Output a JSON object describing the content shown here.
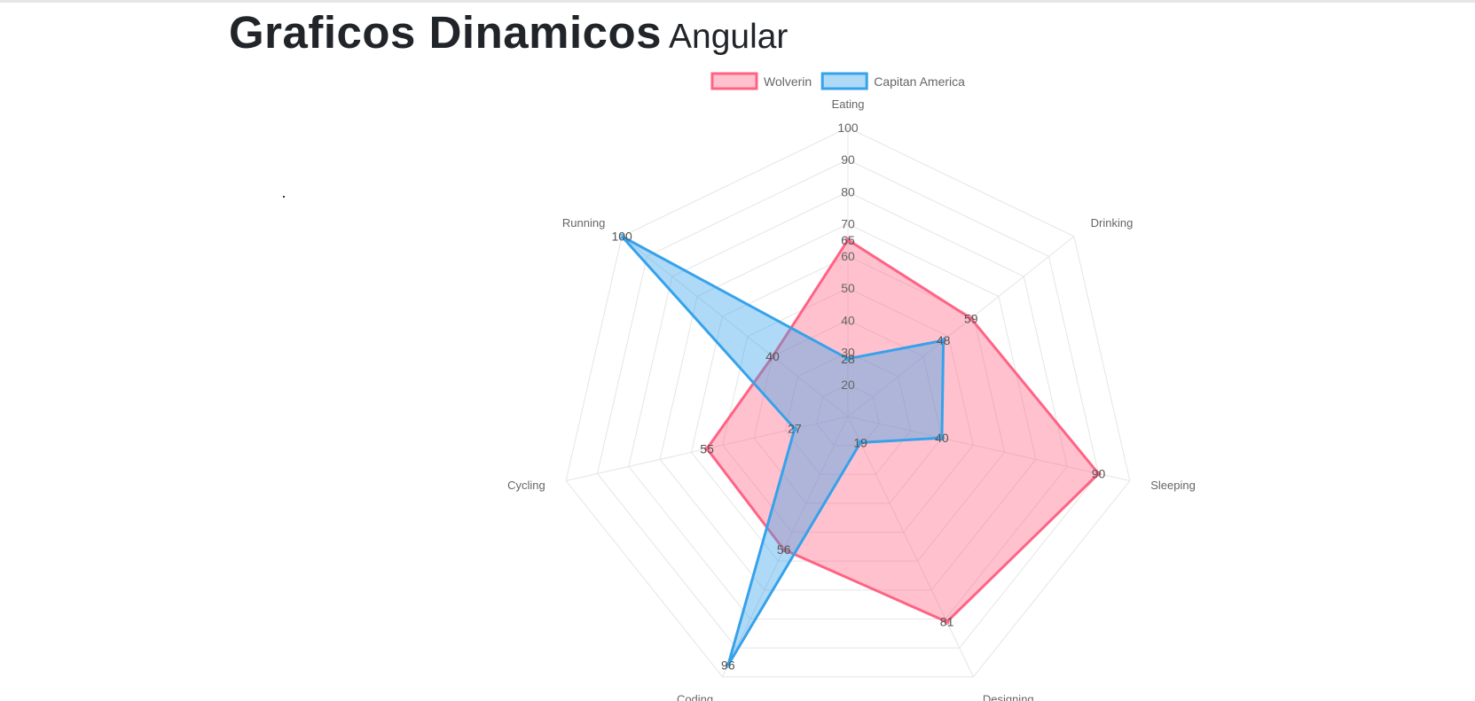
{
  "page": {
    "title_main": "Graficos Dinamicos",
    "title_sub": "Angular"
  },
  "chart_data": {
    "type": "radar",
    "categories": [
      "Eating",
      "Drinking",
      "Sleeping",
      "Designing",
      "Coding",
      "Cycling",
      "Running"
    ],
    "series": [
      {
        "name": "Wolverin",
        "values": [
          65,
          59,
          90,
          81,
          56,
          55,
          40
        ],
        "color": "#ff6384",
        "fill": "rgba(255,99,132,0.4)"
      },
      {
        "name": "Capitan America",
        "values": [
          28,
          48,
          40,
          19,
          96,
          27,
          100
        ],
        "color": "#36a2eb",
        "fill": "rgba(54,162,235,0.4)"
      }
    ],
    "ticks": [
      20,
      30,
      40,
      50,
      60,
      70,
      80,
      90,
      100
    ],
    "rlim": [
      10,
      100
    ],
    "legend_position": "top",
    "grid": true
  }
}
